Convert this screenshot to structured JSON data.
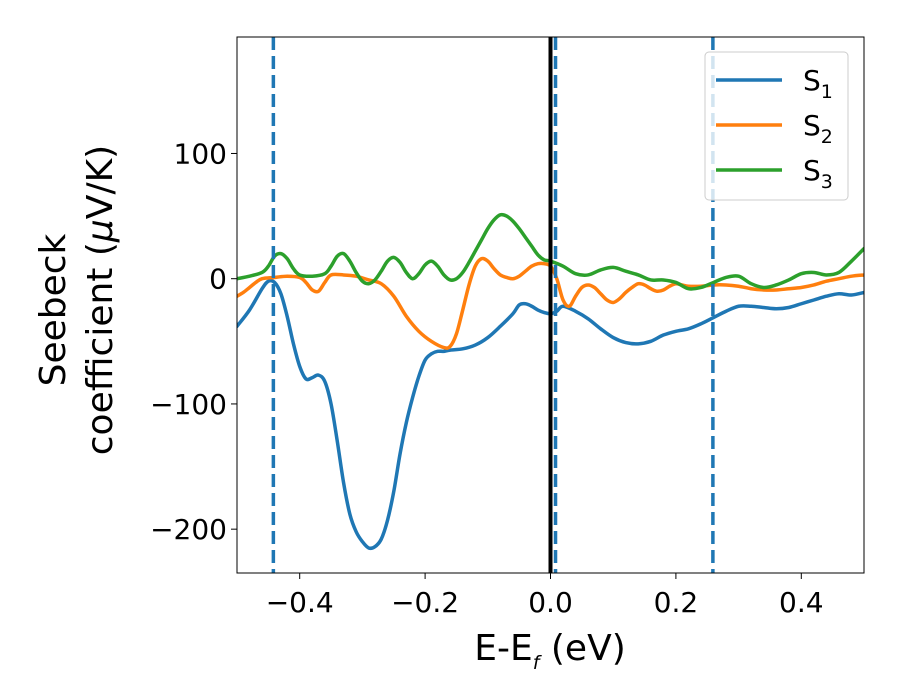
{
  "chart_data": {
    "type": "line",
    "xlabel": {
      "main": "E-E",
      "sub": "f",
      "unit": " (eV)"
    },
    "ylabel": {
      "line1": "Seebeck",
      "line2": "coefficient  (",
      "mu": "μ",
      "line2_end": "V/K)"
    },
    "xlim": [
      -0.5,
      0.5
    ],
    "ylim": [
      -235,
      193
    ],
    "xticks": [
      -0.4,
      -0.2,
      0.0,
      0.2,
      0.4
    ],
    "xtick_labels": [
      "−0.4",
      "−0.2",
      "0.0",
      "0.2",
      "0.4"
    ],
    "yticks": [
      -200,
      -100,
      0,
      100
    ],
    "ytick_labels": [
      "−200",
      "−100",
      "0",
      "100"
    ],
    "grid": false,
    "legend_position": "top-right",
    "vertical_lines": [
      {
        "x": -0.442,
        "style": "dashed",
        "color": "#1f77b4"
      },
      {
        "x": 0.0,
        "style": "solid",
        "color": "#000000"
      },
      {
        "x": 0.008,
        "style": "dashed",
        "color": "#1f77b4"
      },
      {
        "x": 0.259,
        "style": "dashed",
        "color": "#1f77b4"
      }
    ],
    "series": [
      {
        "name": "S",
        "sub": "1",
        "color": "#1f77b4",
        "x": [
          -0.5,
          -0.48,
          -0.46,
          -0.45,
          -0.44,
          -0.43,
          -0.42,
          -0.41,
          -0.4,
          -0.39,
          -0.38,
          -0.37,
          -0.36,
          -0.35,
          -0.34,
          -0.33,
          -0.32,
          -0.31,
          -0.3,
          -0.29,
          -0.28,
          -0.27,
          -0.26,
          -0.25,
          -0.24,
          -0.23,
          -0.22,
          -0.21,
          -0.2,
          -0.19,
          -0.18,
          -0.17,
          -0.16,
          -0.14,
          -0.12,
          -0.1,
          -0.08,
          -0.06,
          -0.05,
          -0.04,
          -0.03,
          -0.02,
          -0.01,
          0.0,
          0.01,
          0.02,
          0.04,
          0.06,
          0.08,
          0.1,
          0.12,
          0.14,
          0.16,
          0.18,
          0.2,
          0.22,
          0.24,
          0.26,
          0.28,
          0.3,
          0.32,
          0.34,
          0.36,
          0.38,
          0.4,
          0.42,
          0.44,
          0.46,
          0.48,
          0.5
        ],
        "y": [
          -38,
          -25,
          -8,
          -2,
          -3,
          -12,
          -30,
          -52,
          -70,
          -80,
          -79,
          -77,
          -82,
          -100,
          -130,
          -163,
          -188,
          -202,
          -210,
          -215,
          -214,
          -208,
          -193,
          -170,
          -140,
          -115,
          -95,
          -78,
          -65,
          -60,
          -58,
          -58,
          -57,
          -56,
          -53,
          -47,
          -38,
          -28,
          -21,
          -20,
          -22,
          -25,
          -27,
          -28,
          -26,
          -22,
          -26,
          -32,
          -40,
          -47,
          -51,
          -52,
          -50,
          -45,
          -42,
          -40,
          -36,
          -31,
          -26,
          -22,
          -22,
          -23,
          -24,
          -23,
          -20,
          -17,
          -14,
          -12,
          -13,
          -11
        ]
      },
      {
        "name": "S",
        "sub": "2",
        "color": "#ff7f0e",
        "x": [
          -0.5,
          -0.49,
          -0.48,
          -0.47,
          -0.46,
          -0.44,
          -0.42,
          -0.4,
          -0.39,
          -0.38,
          -0.37,
          -0.36,
          -0.35,
          -0.33,
          -0.31,
          -0.29,
          -0.27,
          -0.25,
          -0.23,
          -0.21,
          -0.19,
          -0.17,
          -0.16,
          -0.15,
          -0.14,
          -0.13,
          -0.12,
          -0.11,
          -0.1,
          -0.09,
          -0.08,
          -0.07,
          -0.06,
          -0.05,
          -0.04,
          -0.03,
          -0.02,
          -0.01,
          0.0,
          0.01,
          0.02,
          0.03,
          0.04,
          0.05,
          0.06,
          0.07,
          0.08,
          0.09,
          0.1,
          0.11,
          0.12,
          0.13,
          0.14,
          0.15,
          0.16,
          0.17,
          0.18,
          0.19,
          0.2,
          0.21,
          0.22,
          0.24,
          0.26,
          0.28,
          0.3,
          0.32,
          0.34,
          0.36,
          0.38,
          0.4,
          0.42,
          0.44,
          0.46,
          0.48,
          0.5
        ],
        "y": [
          -14,
          -11,
          -7,
          -3,
          0,
          1,
          2,
          1,
          -3,
          -9,
          -10,
          -3,
          3,
          3,
          2,
          -1,
          -4,
          -14,
          -30,
          -42,
          -50,
          -55,
          -54,
          -44,
          -25,
          -5,
          10,
          16,
          14,
          8,
          3,
          1,
          0,
          2,
          6,
          10,
          12,
          12,
          10,
          0,
          -17,
          -22,
          -14,
          -7,
          -5,
          -7,
          -12,
          -17,
          -19,
          -16,
          -11,
          -7,
          -4,
          -5,
          -8,
          -10,
          -9,
          -6,
          -4,
          -5,
          -6,
          -6,
          -5,
          -5,
          -6,
          -8,
          -9,
          -9,
          -8,
          -7,
          -5,
          -2,
          0,
          2,
          3
        ]
      },
      {
        "name": "S",
        "sub": "3",
        "color": "#2ca02c",
        "x": [
          -0.5,
          -0.48,
          -0.46,
          -0.45,
          -0.44,
          -0.43,
          -0.42,
          -0.41,
          -0.4,
          -0.38,
          -0.36,
          -0.35,
          -0.34,
          -0.33,
          -0.32,
          -0.31,
          -0.3,
          -0.29,
          -0.28,
          -0.27,
          -0.26,
          -0.25,
          -0.24,
          -0.23,
          -0.22,
          -0.21,
          -0.2,
          -0.19,
          -0.18,
          -0.17,
          -0.16,
          -0.15,
          -0.14,
          -0.13,
          -0.12,
          -0.11,
          -0.1,
          -0.09,
          -0.08,
          -0.07,
          -0.06,
          -0.05,
          -0.04,
          -0.03,
          -0.02,
          -0.01,
          0.0,
          0.02,
          0.04,
          0.06,
          0.08,
          0.1,
          0.12,
          0.14,
          0.16,
          0.18,
          0.2,
          0.22,
          0.24,
          0.26,
          0.28,
          0.3,
          0.32,
          0.34,
          0.36,
          0.38,
          0.4,
          0.42,
          0.44,
          0.46,
          0.48,
          0.5
        ],
        "y": [
          0,
          2,
          5,
          10,
          18,
          20,
          16,
          8,
          3,
          2,
          4,
          10,
          18,
          20,
          14,
          5,
          -2,
          -4,
          -1,
          6,
          14,
          17,
          13,
          5,
          0,
          4,
          11,
          14,
          10,
          3,
          -1,
          0,
          5,
          13,
          22,
          31,
          40,
          47,
          51,
          50,
          46,
          40,
          33,
          26,
          19,
          15,
          14,
          10,
          4,
          3,
          7,
          9,
          6,
          3,
          -1,
          -1,
          -3,
          -8,
          -7,
          -3,
          1,
          2,
          -4,
          -7,
          -5,
          -1,
          4,
          5,
          3,
          5,
          14,
          24
        ]
      }
    ]
  }
}
